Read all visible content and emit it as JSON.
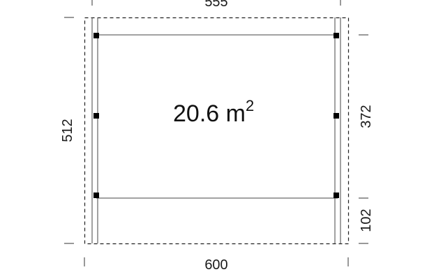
{
  "plan": {
    "area_value": "20.6 m",
    "area_exponent": "2",
    "dim_top": "555",
    "dim_bottom": "600",
    "dim_left": "512",
    "dim_right_upper": "372",
    "dim_right_lower": "102"
  },
  "colors": {
    "line": "#222222",
    "post": "#000000",
    "background": "#ffffff"
  }
}
